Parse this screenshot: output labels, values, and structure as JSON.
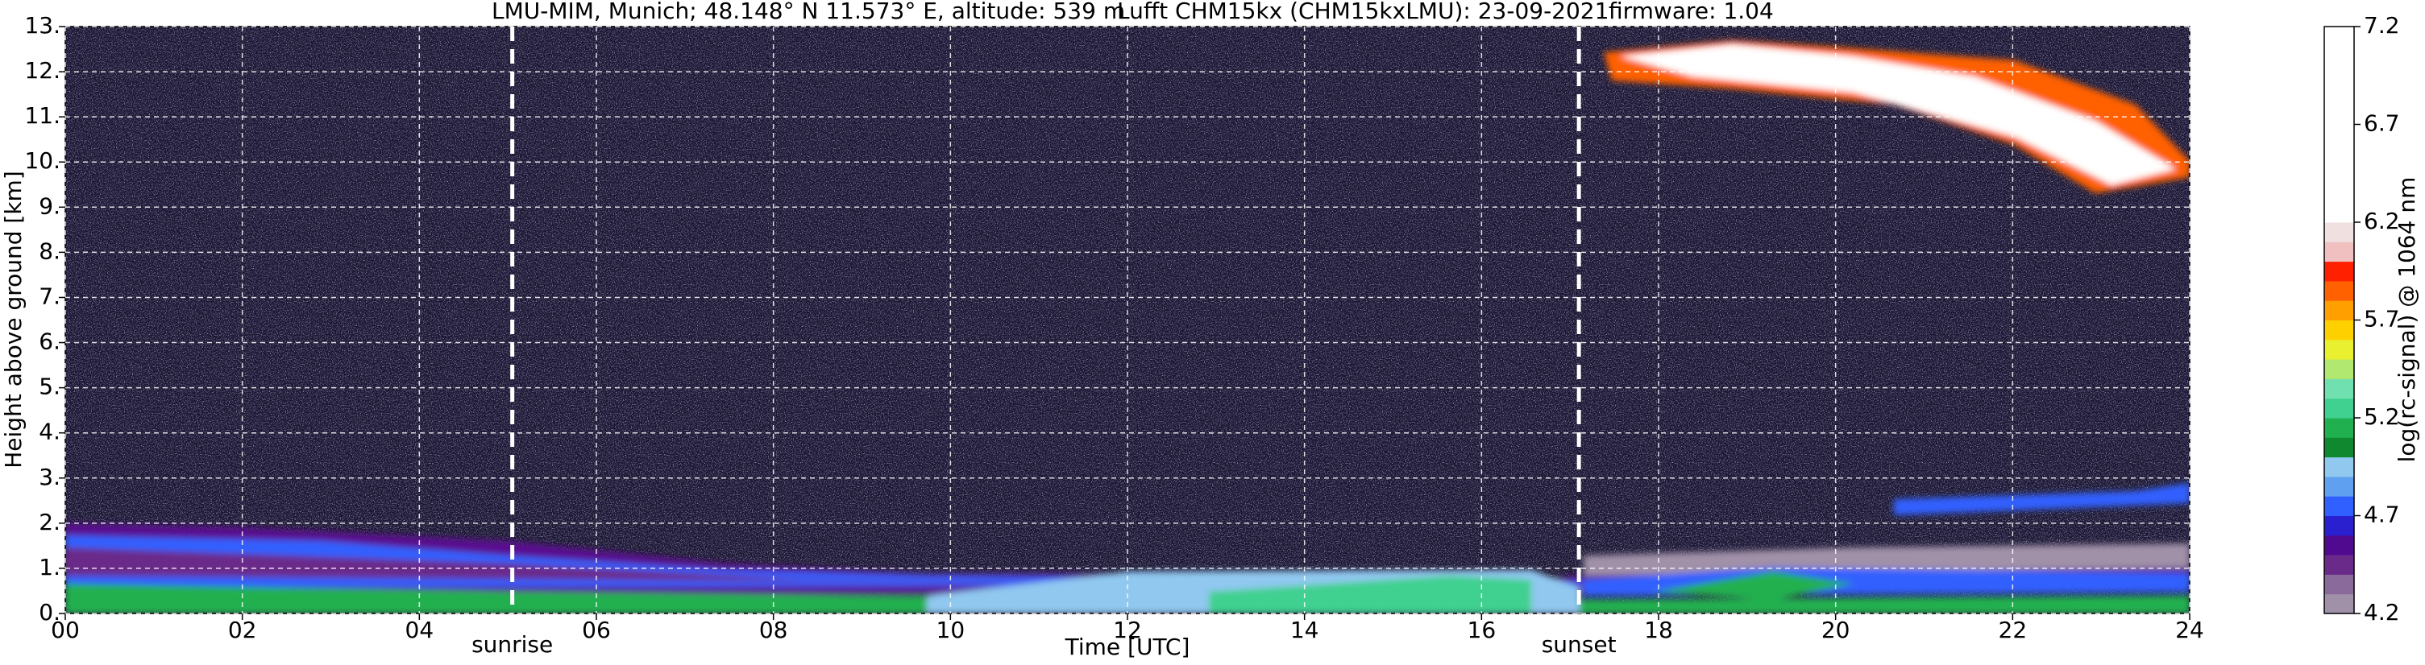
{
  "chart_data": {
    "type": "heatmap",
    "title": "LMU-MIM, Munich; 48.148° N 11.573° E, altitude: 539 m",
    "subtitle": "Lufft CHM15kx (CHM15kxLMU): 23-09-2021",
    "annotation": "firmware: 1.04",
    "xlabel": "Time [UTC]",
    "ylabel": "Height above ground [km]",
    "xlim": [
      0,
      24
    ],
    "xticks": [
      {
        "value": 0,
        "label": "00"
      },
      {
        "value": 2,
        "label": "02"
      },
      {
        "value": 4,
        "label": "04"
      },
      {
        "value": 6,
        "label": "06"
      },
      {
        "value": 8,
        "label": "08"
      },
      {
        "value": 10,
        "label": "10"
      },
      {
        "value": 12,
        "label": "12"
      },
      {
        "value": 14,
        "label": "14"
      },
      {
        "value": 16,
        "label": "16"
      },
      {
        "value": 18,
        "label": "18"
      },
      {
        "value": 20,
        "label": "20"
      },
      {
        "value": 22,
        "label": "22"
      },
      {
        "value": 24,
        "label": "24"
      }
    ],
    "ylim": [
      0,
      13
    ],
    "yticks": [
      {
        "value": 0,
        "label": "0."
      },
      {
        "value": 1,
        "label": "1."
      },
      {
        "value": 2,
        "label": "2."
      },
      {
        "value": 3,
        "label": "3."
      },
      {
        "value": 4,
        "label": "4."
      },
      {
        "value": 5,
        "label": "5."
      },
      {
        "value": 6,
        "label": "6."
      },
      {
        "value": 7,
        "label": "7."
      },
      {
        "value": 8,
        "label": "8."
      },
      {
        "value": 9,
        "label": "9."
      },
      {
        "value": 10,
        "label": "10."
      },
      {
        "value": 11,
        "label": "11."
      },
      {
        "value": 12,
        "label": "12."
      },
      {
        "value": 13,
        "label": "13."
      }
    ],
    "grid": true,
    "vlines": [
      {
        "x": 5.05,
        "label": "sunrise"
      },
      {
        "x": 17.1,
        "label": "sunset"
      }
    ],
    "colorbar": {
      "label": "log(rc-signal) @ 1064 nm",
      "lim": [
        4.2,
        7.2
      ],
      "ticks": [
        4.2,
        4.7,
        5.2,
        5.7,
        6.2,
        6.7,
        7.2
      ],
      "colors": [
        "#a090a8",
        "#8a6a9a",
        "#6a2a8a",
        "#500a90",
        "#2a20d0",
        "#3060ff",
        "#60a0f0",
        "#90c8f0",
        "#108830",
        "#20b050",
        "#40d090",
        "#70e0b0",
        "#b0e870",
        "#e8f030",
        "#ffd000",
        "#ffa000",
        "#ff6000",
        "#ff2000",
        "#f0c0c0",
        "#f0e0e0",
        "#ffffff",
        "#ffffff",
        "#ffffff",
        "#ffffff",
        "#ffffff",
        "#ffffff",
        "#ffffff",
        "#ffffff",
        "#ffffff",
        "#ffffff"
      ]
    }
  }
}
